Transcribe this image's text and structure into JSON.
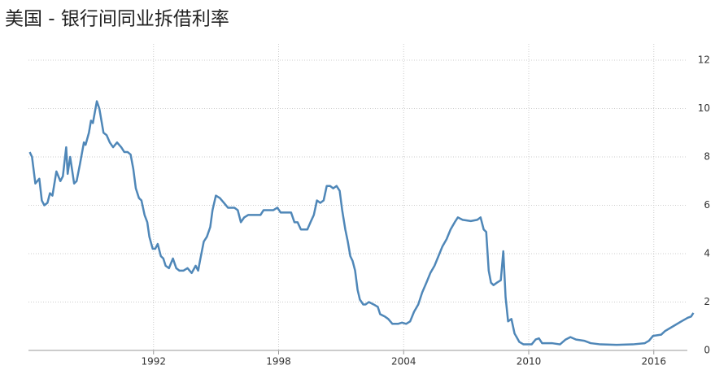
{
  "chart_data": {
    "type": "line",
    "title": "美国 - 银行间同业拆借利率",
    "x": [
      1986.06,
      1986.17,
      1986.33,
      1986.52,
      1986.64,
      1986.76,
      1986.91,
      1987.03,
      1987.15,
      1987.34,
      1987.53,
      1987.65,
      1987.81,
      1987.88,
      1988.0,
      1988.19,
      1988.31,
      1988.47,
      1988.66,
      1988.74,
      1988.9,
      1989.0,
      1989.09,
      1989.28,
      1989.4,
      1989.6,
      1989.75,
      1989.9,
      1990.06,
      1990.25,
      1990.45,
      1990.6,
      1990.76,
      1990.9,
      1991.03,
      1991.15,
      1991.3,
      1991.42,
      1991.57,
      1991.7,
      1991.8,
      1991.96,
      1992.08,
      1992.2,
      1992.35,
      1992.47,
      1992.58,
      1992.74,
      1992.93,
      1993.09,
      1993.24,
      1993.44,
      1993.63,
      1993.83,
      1994.02,
      1994.14,
      1994.25,
      1994.41,
      1994.56,
      1994.72,
      1994.83,
      1994.99,
      1995.18,
      1995.38,
      1995.57,
      1995.77,
      1995.88,
      1996.04,
      1996.19,
      1996.35,
      1996.54,
      1996.74,
      1996.93,
      1997.13,
      1997.28,
      1997.51,
      1997.75,
      1997.94,
      1998.1,
      1998.37,
      1998.6,
      1998.76,
      1998.91,
      1999.07,
      1999.38,
      1999.53,
      1999.69,
      1999.84,
      2000.0,
      2000.16,
      2000.31,
      2000.47,
      2000.62,
      2000.78,
      2000.93,
      2001.05,
      2001.2,
      2001.32,
      2001.44,
      2001.55,
      2001.67,
      2001.79,
      2001.9,
      2002.06,
      2002.17,
      2002.33,
      2002.56,
      2002.76,
      2002.87,
      2003.1,
      2003.26,
      2003.46,
      2003.73,
      2003.92,
      2004.12,
      2004.31,
      2004.5,
      2004.7,
      2004.89,
      2005.09,
      2005.28,
      2005.48,
      2005.67,
      2005.86,
      2006.06,
      2006.25,
      2006.45,
      2006.6,
      2006.83,
      2007.22,
      2007.53,
      2007.69,
      2007.84,
      2007.96,
      2008.08,
      2008.19,
      2008.31,
      2008.47,
      2008.66,
      2008.78,
      2008.89,
      2009.01,
      2009.17,
      2009.32,
      2009.55,
      2009.75,
      2010.14,
      2010.33,
      2010.49,
      2010.64,
      2011.11,
      2011.5,
      2011.77,
      2012.0,
      2012.27,
      2012.66,
      2012.97,
      2013.44,
      2014.21,
      2014.99,
      2015.57,
      2015.77,
      2015.96,
      2016.35,
      2016.54,
      2016.93,
      2017.32,
      2017.63,
      2017.79,
      2017.9
    ],
    "series": [
      {
        "color": "#4f87b8",
        "values": [
          8.2,
          8.0,
          6.9,
          7.1,
          6.2,
          6.0,
          6.1,
          6.5,
          6.4,
          7.4,
          7.0,
          7.2,
          8.4,
          7.3,
          8.0,
          6.9,
          7.0,
          7.7,
          8.6,
          8.5,
          9.0,
          9.5,
          9.4,
          10.3,
          10.0,
          9.0,
          8.9,
          8.6,
          8.4,
          8.6,
          8.4,
          8.2,
          8.2,
          8.1,
          7.5,
          6.7,
          6.3,
          6.2,
          5.6,
          5.3,
          4.7,
          4.2,
          4.2,
          4.4,
          3.9,
          3.8,
          3.5,
          3.4,
          3.8,
          3.4,
          3.3,
          3.3,
          3.4,
          3.2,
          3.5,
          3.3,
          3.8,
          4.5,
          4.7,
          5.1,
          5.8,
          6.4,
          6.3,
          6.1,
          5.9,
          5.9,
          5.9,
          5.8,
          5.3,
          5.5,
          5.6,
          5.6,
          5.6,
          5.6,
          5.8,
          5.8,
          5.8,
          5.9,
          5.7,
          5.7,
          5.7,
          5.3,
          5.3,
          5.0,
          5.0,
          5.3,
          5.6,
          6.2,
          6.1,
          6.2,
          6.8,
          6.8,
          6.7,
          6.8,
          6.6,
          5.8,
          5.0,
          4.5,
          3.9,
          3.7,
          3.3,
          2.5,
          2.1,
          1.9,
          1.9,
          2.0,
          1.9,
          1.8,
          1.5,
          1.4,
          1.3,
          1.1,
          1.1,
          1.15,
          1.1,
          1.2,
          1.6,
          1.9,
          2.4,
          2.8,
          3.2,
          3.5,
          3.9,
          4.3,
          4.6,
          5.0,
          5.3,
          5.5,
          5.4,
          5.35,
          5.4,
          5.5,
          5.0,
          4.9,
          3.3,
          2.8,
          2.7,
          2.8,
          2.9,
          4.1,
          2.2,
          1.2,
          1.3,
          0.7,
          0.35,
          0.25,
          0.25,
          0.45,
          0.5,
          0.3,
          0.3,
          0.25,
          0.45,
          0.55,
          0.45,
          0.4,
          0.3,
          0.25,
          0.23,
          0.25,
          0.3,
          0.4,
          0.6,
          0.65,
          0.8,
          1.0,
          1.2,
          1.35,
          1.4,
          1.55
        ]
      }
    ],
    "xlim": [
      1986,
      2018
    ],
    "xticks": [
      1992,
      1998,
      2004,
      2010,
      2016
    ],
    "ylim": [
      0,
      12
    ],
    "yticks": [
      0,
      2,
      4,
      6,
      8,
      10,
      12
    ],
    "grid": true
  }
}
